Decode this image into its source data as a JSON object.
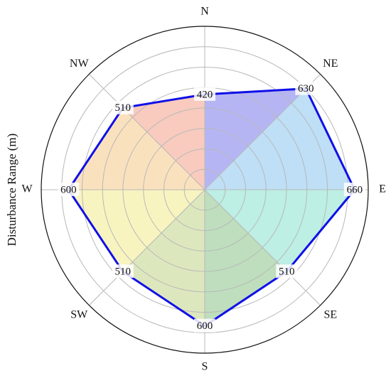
{
  "chart_data": {
    "type": "radar",
    "title": "",
    "ylabel": "Disturbance Range (m)",
    "directions": [
      "N",
      "NE",
      "E",
      "SE",
      "S",
      "SW",
      "W",
      "NW"
    ],
    "values": [
      420,
      630,
      660,
      510,
      600,
      510,
      600,
      510
    ],
    "value_labels": [
      "420",
      "630",
      "660",
      "510",
      "600",
      "510",
      "600",
      "510"
    ],
    "rlim": [
      0,
      720
    ],
    "grid": true,
    "series_color": "#1010e8",
    "sector_colors": [
      "#a9a8f2",
      "#b3d9f5",
      "#b1ecdf",
      "#b3d8b2",
      "#d7e3b3",
      "#f7f2b5",
      "#f9dcb3",
      "#f7c2b3"
    ]
  }
}
